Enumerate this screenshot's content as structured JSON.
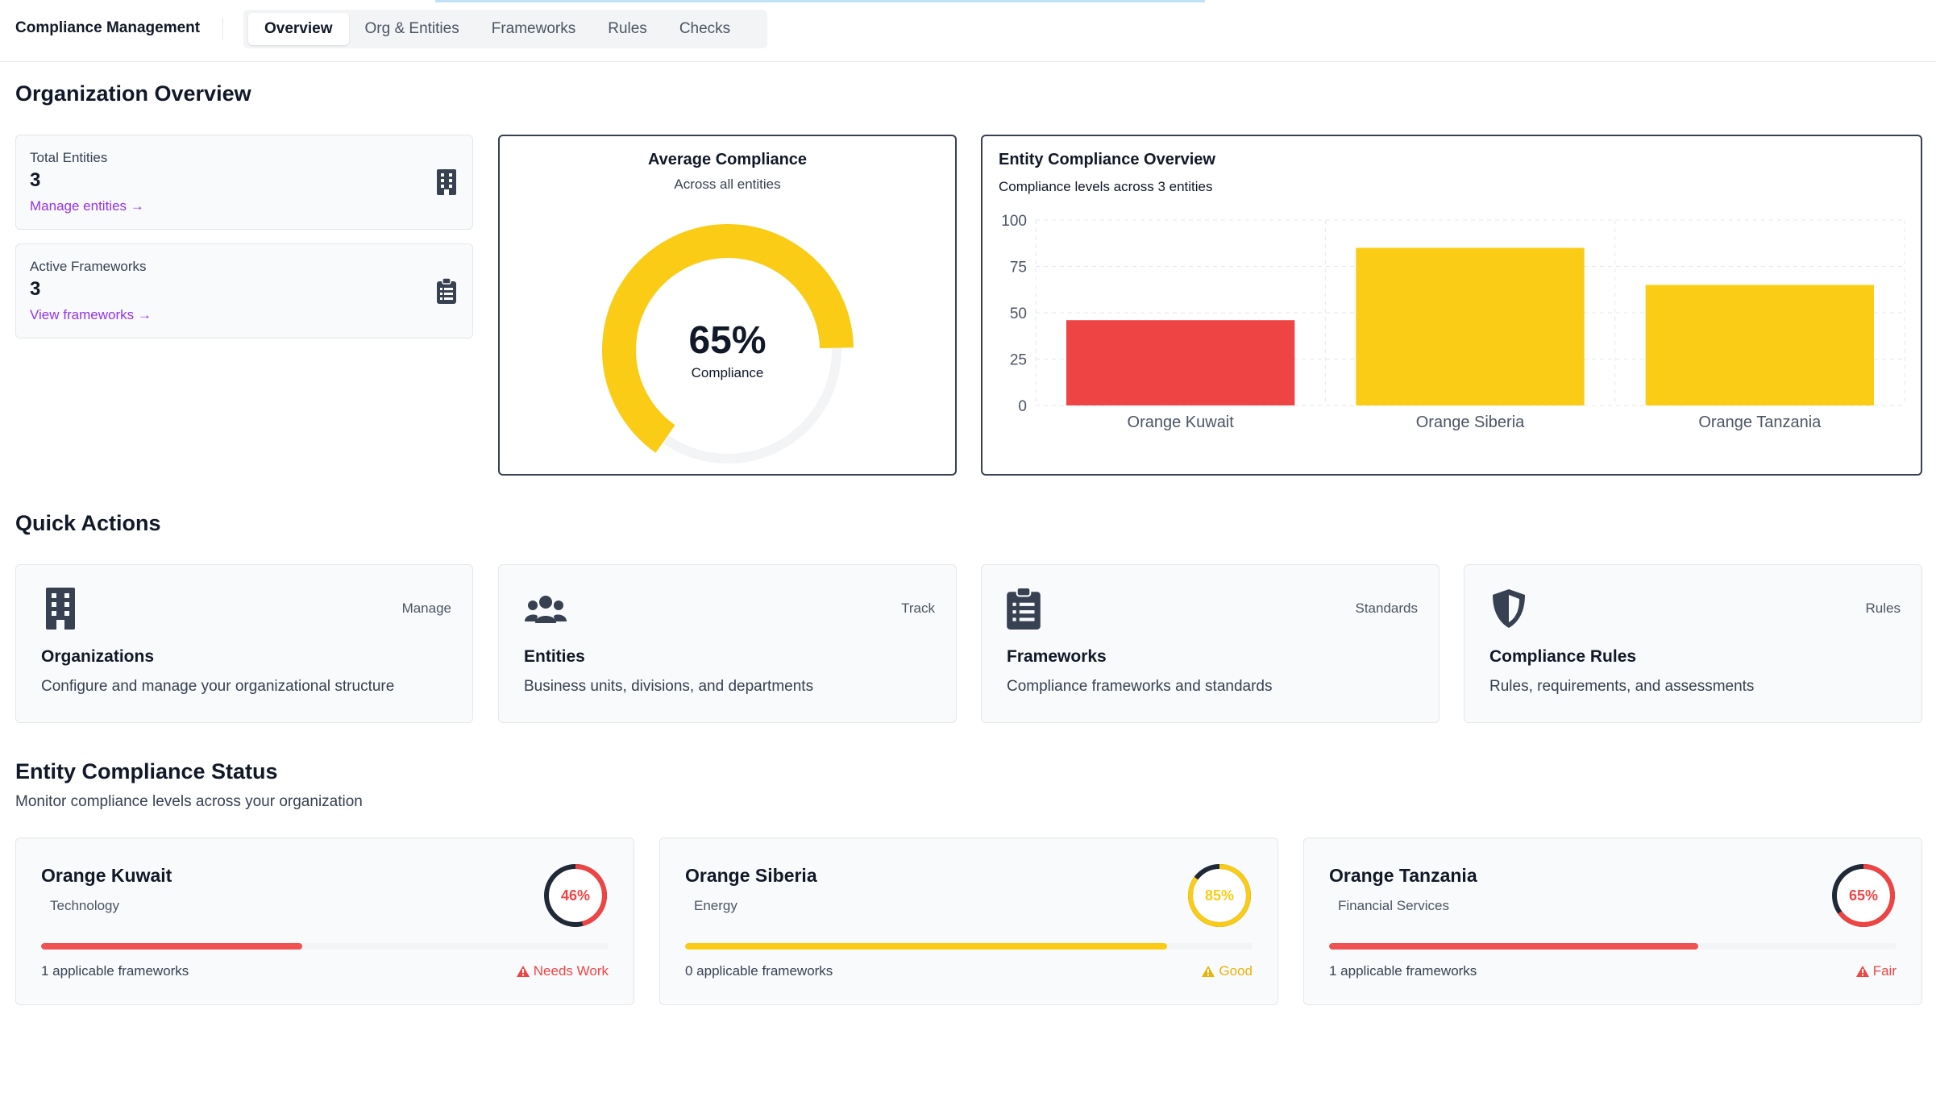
{
  "app": {
    "title": "Compliance Management",
    "tabs": [
      {
        "label": "Overview",
        "active": true
      },
      {
        "label": "Org & Entities",
        "active": false
      },
      {
        "label": "Frameworks",
        "active": false
      },
      {
        "label": "Rules",
        "active": false
      },
      {
        "label": "Checks",
        "active": false
      }
    ]
  },
  "overview": {
    "heading": "Organization Overview",
    "stats": [
      {
        "label": "Total Entities",
        "value": "3",
        "link": "Manage entities →",
        "icon": "building-icon"
      },
      {
        "label": "Active Frameworks",
        "value": "3",
        "link": "View frameworks →",
        "icon": "clipboard-icon"
      }
    ],
    "average": {
      "title": "Average Compliance",
      "subtitle": "Across all entities",
      "percent_label": "65%",
      "caption": "Compliance",
      "value": 65,
      "color": "#facc15"
    }
  },
  "chart_data": {
    "type": "bar",
    "title": "Entity Compliance Overview",
    "subtitle": "Compliance levels across 3 entities",
    "categories": [
      "Orange Kuwait",
      "Orange Siberia",
      "Orange Tanzania"
    ],
    "values": [
      46,
      85,
      65
    ],
    "colors": [
      "#ef4444",
      "#facc15",
      "#facc15"
    ],
    "ylim": [
      0,
      100
    ],
    "yticks": [
      0,
      25,
      50,
      75,
      100
    ],
    "grid": true
  },
  "quick_actions": {
    "heading": "Quick Actions",
    "items": [
      {
        "icon": "building-icon",
        "tag": "Manage",
        "title": "Organizations",
        "desc": "Configure and manage your organizational structure"
      },
      {
        "icon": "users-icon",
        "tag": "Track",
        "title": "Entities",
        "desc": "Business units, divisions, and departments"
      },
      {
        "icon": "clipboard-icon",
        "tag": "Standards",
        "title": "Frameworks",
        "desc": "Compliance frameworks and standards"
      },
      {
        "icon": "shield-icon",
        "tag": "Rules",
        "title": "Compliance Rules",
        "desc": "Rules, requirements, and assessments"
      }
    ]
  },
  "entity_status": {
    "heading": "Entity Compliance Status",
    "subheading": "Monitor compliance levels across your organization",
    "entities": [
      {
        "name": "Orange Kuwait",
        "sector": "Technology",
        "percent": 46,
        "percent_label": "46%",
        "frameworks": "1 applicable frameworks",
        "status": "Needs Work",
        "color": "#ef4444",
        "bar_color": "#f05252"
      },
      {
        "name": "Orange Siberia",
        "sector": "Energy",
        "percent": 85,
        "percent_label": "85%",
        "frameworks": "0 applicable frameworks",
        "status": "Good",
        "color": "#facc15",
        "bar_color": "#facc15"
      },
      {
        "name": "Orange Tanzania",
        "sector": "Financial Services",
        "percent": 65,
        "percent_label": "65%",
        "frameworks": "1 applicable frameworks",
        "status": "Fair",
        "color": "#ef4444",
        "bar_color": "#f05252"
      }
    ]
  }
}
